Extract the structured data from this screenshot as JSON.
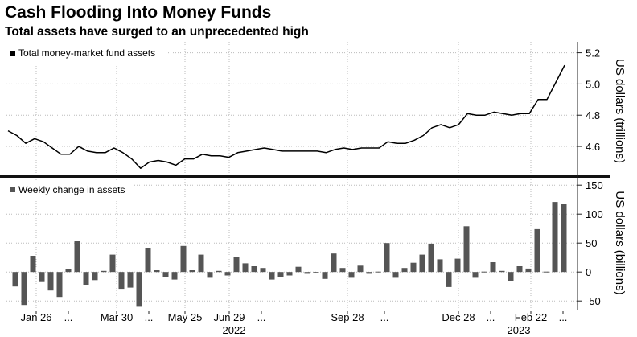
{
  "header": {
    "title": "Cash Flooding Into Money Funds",
    "subtitle": "Total assets have surged to an unprecedented high"
  },
  "chart_data": [
    {
      "type": "line",
      "legend": "Total money-market fund assets",
      "ylabel": "US dollars (trillions)",
      "ylim": [
        4.42,
        5.27
      ],
      "yticks": [
        "4.6",
        "4.8",
        "5.0",
        "5.2"
      ],
      "grid": true,
      "color": "#000000",
      "values": [
        4.7,
        4.67,
        4.62,
        4.65,
        4.63,
        4.59,
        4.55,
        4.55,
        4.6,
        4.57,
        4.56,
        4.56,
        4.59,
        4.56,
        4.52,
        4.46,
        4.5,
        4.51,
        4.5,
        4.48,
        4.52,
        4.52,
        4.55,
        4.54,
        4.54,
        4.53,
        4.56,
        4.57,
        4.58,
        4.59,
        4.58,
        4.57,
        4.57,
        4.57,
        4.57,
        4.57,
        4.56,
        4.58,
        4.59,
        4.58,
        4.59,
        4.59,
        4.59,
        4.63,
        4.62,
        4.62,
        4.64,
        4.67,
        4.72,
        4.74,
        4.72,
        4.74,
        4.81,
        4.8,
        4.8,
        4.82,
        4.81,
        4.8,
        4.81,
        4.81,
        4.9,
        4.9,
        5.01,
        5.12
      ]
    },
    {
      "type": "bar",
      "legend": "Weekly change in assets",
      "ylabel": "US dollars (billions)",
      "ylim": [
        -65,
        160
      ],
      "yticks": [
        "-50",
        "0",
        "50",
        "100",
        "150"
      ],
      "grid": true,
      "color": "#555555",
      "values": [
        -25,
        -57,
        28,
        -16,
        -32,
        -43,
        5,
        53,
        -22,
        -14,
        2,
        30,
        -29,
        -27,
        -60,
        42,
        3,
        -8,
        -13,
        45,
        3,
        30,
        -10,
        2,
        -6,
        26,
        15,
        10,
        7,
        -13,
        -8,
        -6,
        9,
        -3,
        -2,
        -12,
        32,
        7,
        -10,
        11,
        -3,
        0,
        50,
        -10,
        7,
        16,
        30,
        49,
        22,
        -26,
        23,
        79,
        -10,
        0,
        17,
        2,
        -15,
        10,
        6,
        74,
        0,
        121,
        117
      ]
    }
  ],
  "xaxis": {
    "tick_labels": [
      "Jan 26",
      "...",
      "Mar 30",
      "...",
      "May 25",
      "Jun 29",
      "...",
      "Sep 28",
      "...",
      "Dec 28",
      "...",
      "Feb 22",
      "..."
    ],
    "year_labels": [
      "2022",
      "2023"
    ]
  }
}
